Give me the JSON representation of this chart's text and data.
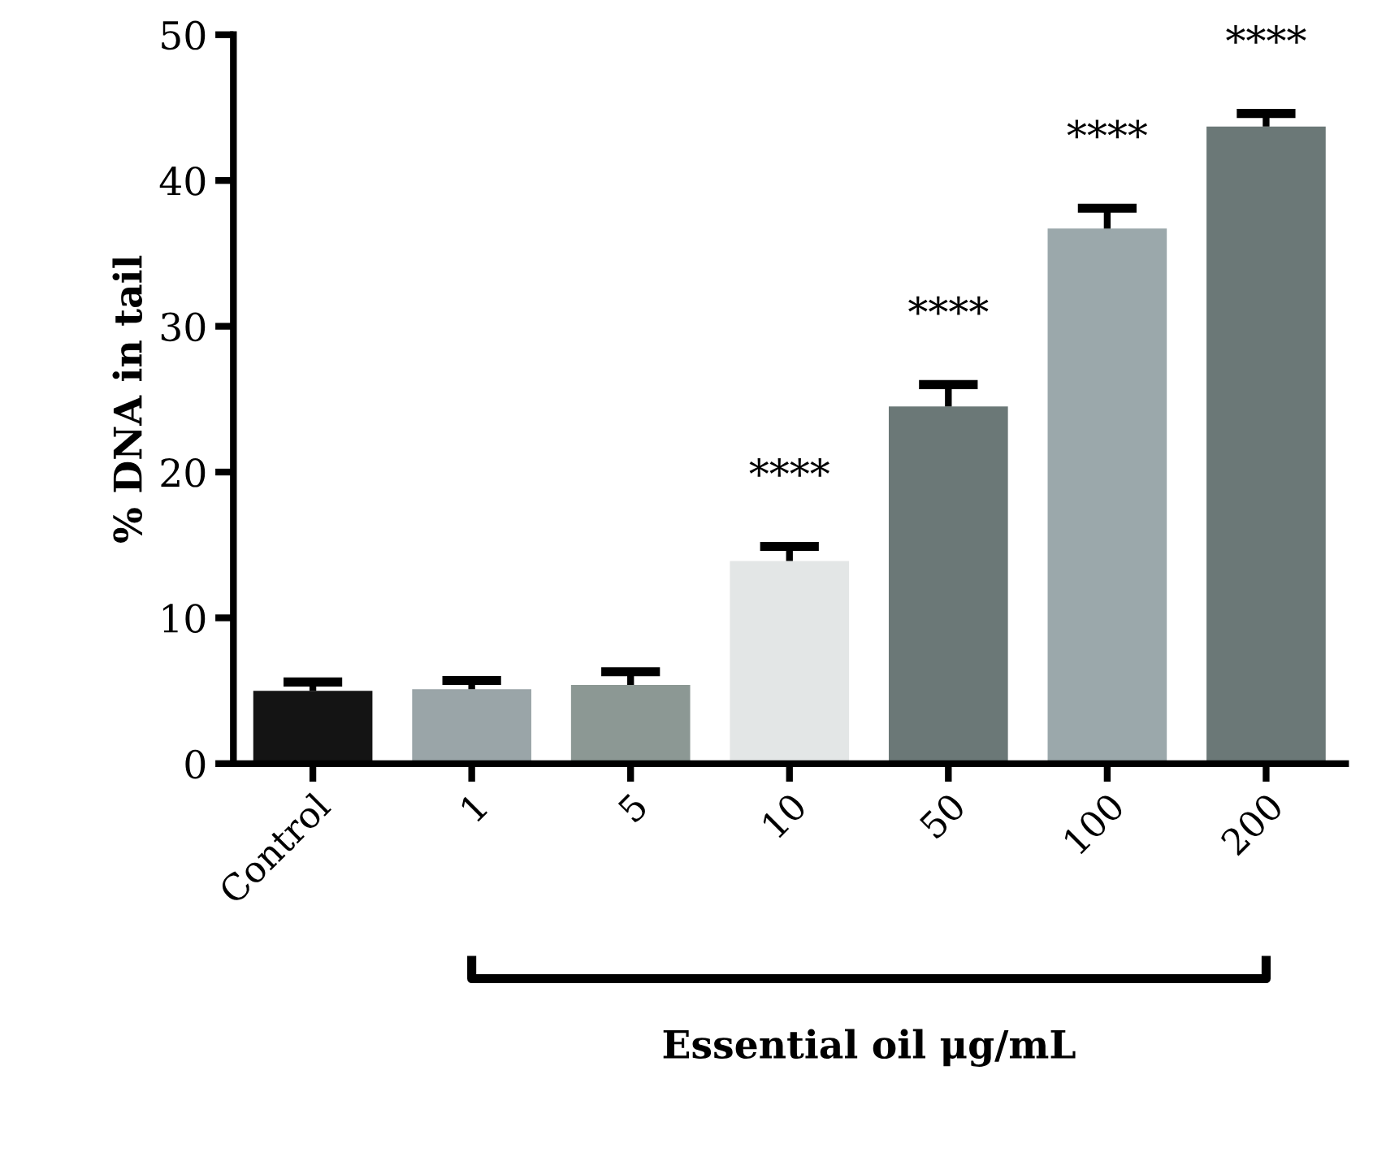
{
  "chart_data": {
    "type": "bar",
    "xlabel": "Essential oil μg/mL",
    "ylabel": "% DNA in tail",
    "categories": [
      "Control",
      "1",
      "5",
      "10",
      "50",
      "100",
      "200"
    ],
    "values": [
      5.0,
      5.1,
      5.4,
      13.9,
      24.5,
      36.7,
      43.7
    ],
    "errors": [
      0.6,
      0.6,
      0.9,
      1.0,
      1.5,
      1.4,
      0.9
    ],
    "colors": [
      "#141414",
      "#9aa5a8",
      "#8c9894",
      "#e3e6e6",
      "#6b7877",
      "#9ba8ab",
      "#6b7877"
    ],
    "ylim": [
      0,
      50
    ],
    "yticks": [
      0,
      10,
      20,
      30,
      40,
      50
    ],
    "grid": false,
    "annotations": [
      "****",
      "****",
      "****",
      "****"
    ]
  }
}
